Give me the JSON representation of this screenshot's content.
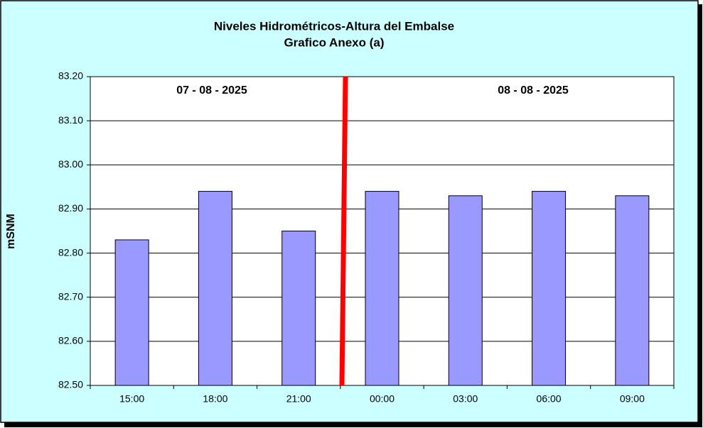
{
  "chart_data": {
    "type": "bar",
    "title": "Niveles Hidrométricos-Altura del Embalse",
    "subtitle": "Grafico Anexo (a)",
    "y_label": "mSNM",
    "annotations": [
      "07 - 08 - 2025",
      "08 - 08 - 2025"
    ],
    "categories": [
      "15:00",
      "18:00",
      "21:00",
      "00:00",
      "03:00",
      "06:00",
      "09:00"
    ],
    "values": [
      82.83,
      82.94,
      82.85,
      82.94,
      82.93,
      82.94,
      82.93
    ],
    "color": "#9999ff",
    "ylim": [
      82.5,
      83.2
    ],
    "yticks": [
      {
        "value": 82.5,
        "label": "82.50"
      },
      {
        "value": 82.6,
        "label": "82.60"
      },
      {
        "value": 82.7,
        "label": "82.70"
      },
      {
        "value": 82.8,
        "label": "82.80"
      },
      {
        "value": 82.9,
        "label": "82.90"
      },
      {
        "value": 83.0,
        "label": "83.00"
      },
      {
        "value": 83.1,
        "label": "83.10"
      },
      {
        "value": 83.2,
        "label": "83.20"
      }
    ],
    "grid": true
  }
}
